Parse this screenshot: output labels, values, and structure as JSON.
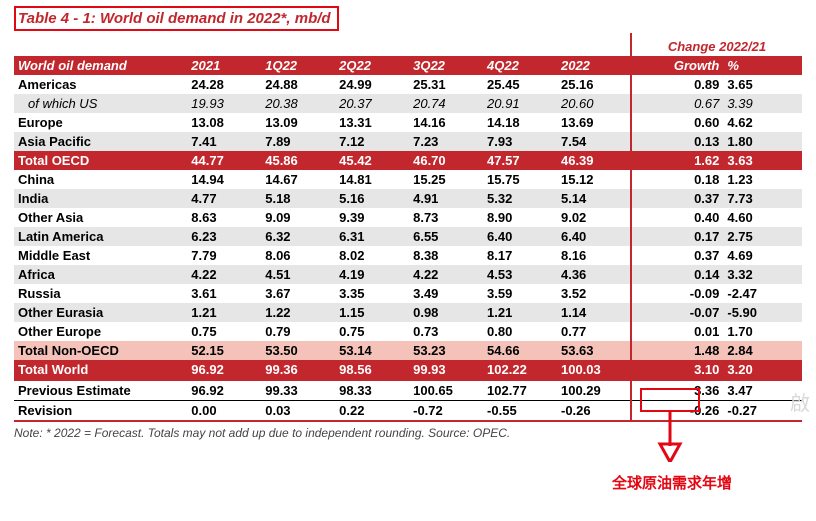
{
  "title": "Table 4 - 1: World oil demand in 2022*, mb/d",
  "change_header": "Change 2022/21",
  "columns": [
    "World oil demand",
    "2021",
    "1Q22",
    "2Q22",
    "3Q22",
    "4Q22",
    "2022",
    "Growth",
    "%"
  ],
  "rows": [
    {
      "style": "bold",
      "c": [
        "Americas",
        "24.28",
        "24.88",
        "24.99",
        "25.31",
        "25.45",
        "25.16",
        "0.89",
        "3.65"
      ]
    },
    {
      "style": "ital shade",
      "c": [
        "of which US",
        "19.93",
        "20.38",
        "20.37",
        "20.74",
        "20.91",
        "20.60",
        "0.67",
        "3.39"
      ]
    },
    {
      "style": "bold",
      "c": [
        "Europe",
        "13.08",
        "13.09",
        "13.31",
        "14.16",
        "14.18",
        "13.69",
        "0.60",
        "4.62"
      ]
    },
    {
      "style": "bold shade",
      "c": [
        "Asia Pacific",
        "7.41",
        "7.89",
        "7.12",
        "7.23",
        "7.93",
        "7.54",
        "0.13",
        "1.80"
      ]
    },
    {
      "style": "sub1",
      "c": [
        "Total OECD",
        "44.77",
        "45.86",
        "45.42",
        "46.70",
        "47.57",
        "46.39",
        "1.62",
        "3.63"
      ]
    },
    {
      "style": "bold",
      "c": [
        "China",
        "14.94",
        "14.67",
        "14.81",
        "15.25",
        "15.75",
        "15.12",
        "0.18",
        "1.23"
      ]
    },
    {
      "style": "bold shade",
      "c": [
        "India",
        "4.77",
        "5.18",
        "5.16",
        "4.91",
        "5.32",
        "5.14",
        "0.37",
        "7.73"
      ]
    },
    {
      "style": "bold",
      "c": [
        "Other Asia",
        "8.63",
        "9.09",
        "9.39",
        "8.73",
        "8.90",
        "9.02",
        "0.40",
        "4.60"
      ]
    },
    {
      "style": "bold shade",
      "c": [
        "Latin America",
        "6.23",
        "6.32",
        "6.31",
        "6.55",
        "6.40",
        "6.40",
        "0.17",
        "2.75"
      ]
    },
    {
      "style": "bold",
      "c": [
        "Middle East",
        "7.79",
        "8.06",
        "8.02",
        "8.38",
        "8.17",
        "8.16",
        "0.37",
        "4.69"
      ]
    },
    {
      "style": "bold shade",
      "c": [
        "Africa",
        "4.22",
        "4.51",
        "4.19",
        "4.22",
        "4.53",
        "4.36",
        "0.14",
        "3.32"
      ]
    },
    {
      "style": "bold",
      "c": [
        "Russia",
        "3.61",
        "3.67",
        "3.35",
        "3.49",
        "3.59",
        "3.52",
        "-0.09",
        "-2.47"
      ]
    },
    {
      "style": "bold shade",
      "c": [
        "Other Eurasia",
        "1.21",
        "1.22",
        "1.15",
        "0.98",
        "1.21",
        "1.14",
        "-0.07",
        "-5.90"
      ]
    },
    {
      "style": "bold",
      "c": [
        "Other Europe",
        "0.75",
        "0.79",
        "0.75",
        "0.73",
        "0.80",
        "0.77",
        "0.01",
        "1.70"
      ]
    },
    {
      "style": "sub2",
      "c": [
        "Total Non-OECD",
        "52.15",
        "53.50",
        "53.14",
        "53.23",
        "54.66",
        "53.63",
        "1.48",
        "2.84"
      ]
    },
    {
      "style": "totalw",
      "c": [
        "Total World",
        "96.92",
        "99.36",
        "98.56",
        "99.93",
        "102.22",
        "100.03",
        "3.10",
        "3.20"
      ]
    },
    {
      "style": "bold linebot",
      "c": [
        "Previous Estimate",
        "96.92",
        "99.33",
        "98.33",
        "100.65",
        "102.77",
        "100.29",
        "3.36",
        "3.47"
      ]
    },
    {
      "style": "bold db",
      "c": [
        "Revision",
        "0.00",
        "0.03",
        "0.22",
        "-0.72",
        "-0.55",
        "-0.26",
        "-0.26",
        "-0.27"
      ]
    }
  ],
  "note": "Note: * 2022 = Forecast. Totals may not add up due to independent rounding. Source: OPEC.",
  "annotation_label": "全球原油需求年增",
  "watermark": "啟",
  "colors": {
    "brand": "#c1272d",
    "hl": "#e30613",
    "shade": "#e6e6e6",
    "sub2": "#f4c2b9"
  }
}
